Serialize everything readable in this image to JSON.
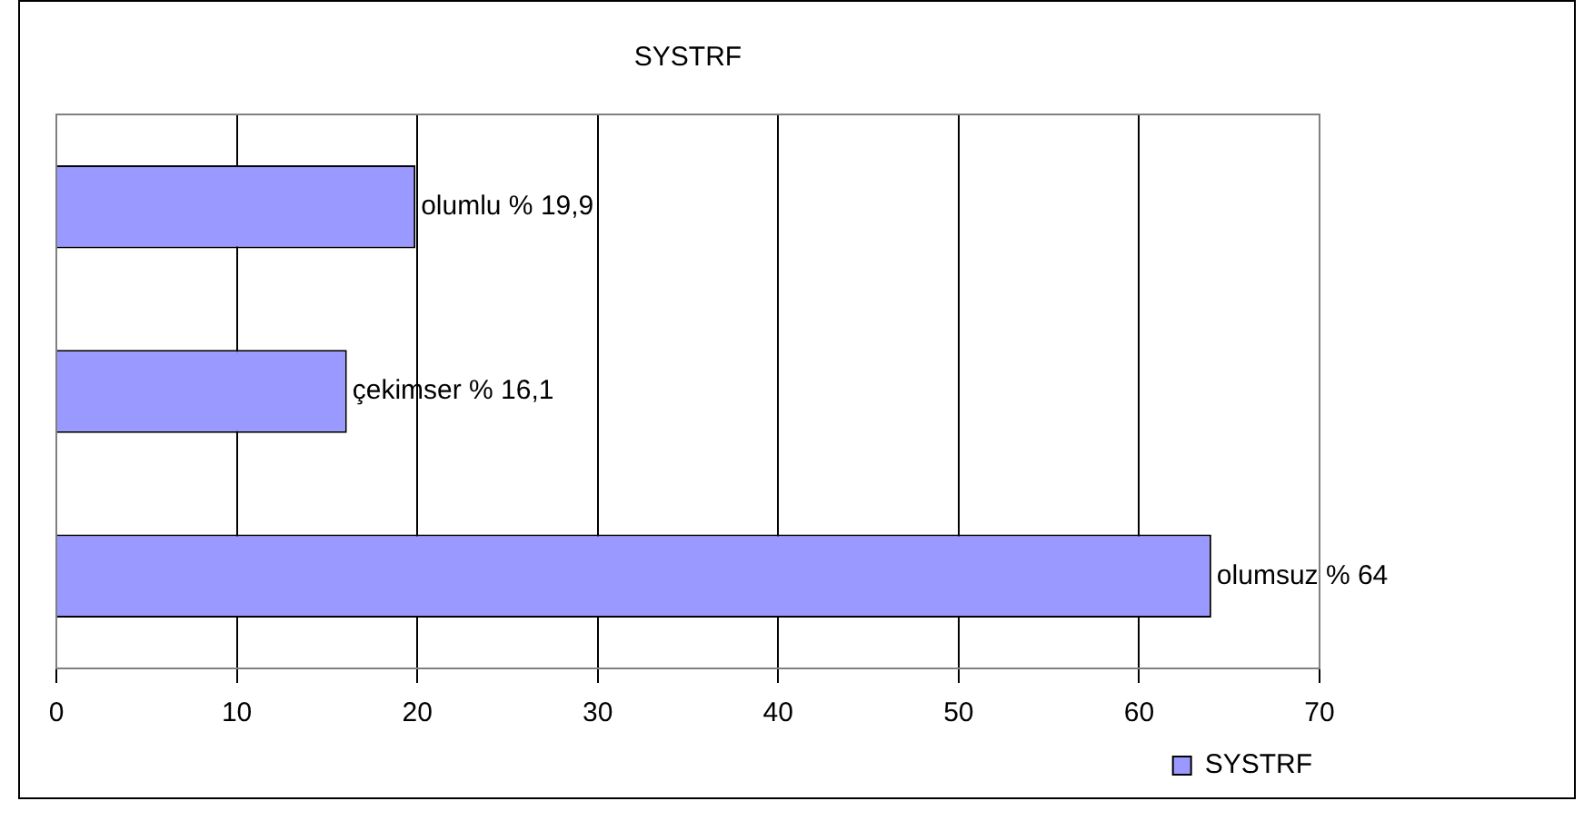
{
  "chart_data": {
    "type": "bar",
    "title": "SYSTRF",
    "orientation": "horizontal",
    "categories": [
      null,
      null,
      null
    ],
    "series": [
      {
        "name": "SYSTRF",
        "color": "#9999ff",
        "values": [
          19.9,
          16.1,
          64
        ],
        "value_labels": [
          "olumlu % 19,9",
          "çekimser % 16,1",
          "olumsuz % 64"
        ]
      }
    ],
    "xlim": [
      0,
      70
    ],
    "xticks": [
      0,
      10,
      20,
      30,
      40,
      50,
      60,
      70
    ],
    "grid": "x",
    "legend": "bottom right",
    "tick_labels": "x"
  }
}
